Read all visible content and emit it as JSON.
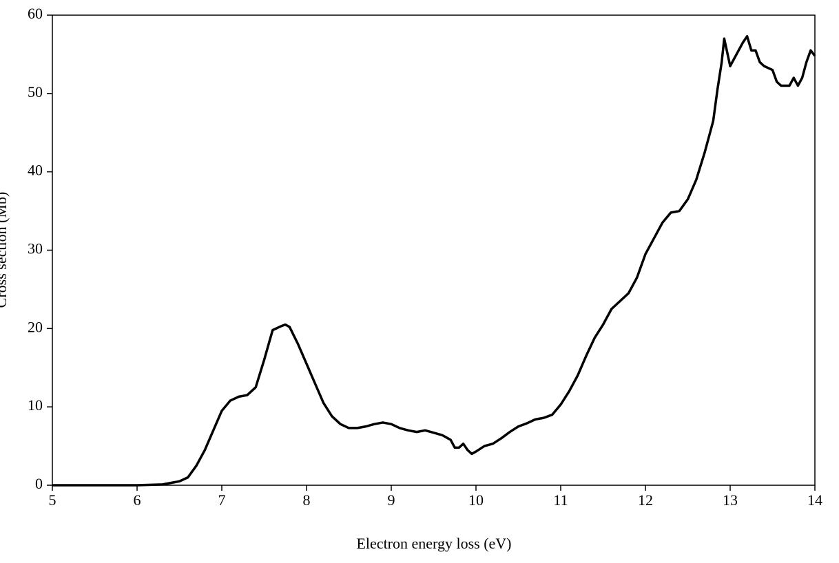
{
  "chart_data": {
    "type": "line",
    "x_label": "Electron energy loss (eV)",
    "y_label": "Cross section (Mb)",
    "xlim": [
      5,
      14
    ],
    "xticks": [
      5,
      6,
      7,
      8,
      9,
      10,
      11,
      12,
      13,
      14
    ],
    "ylim": [
      0,
      60
    ],
    "yticks": [
      0,
      10,
      20,
      30,
      40,
      50,
      60
    ],
    "grid": false,
    "series": [
      {
        "color": "#000000",
        "x": [
          5.0,
          6.0,
          6.3,
          6.5,
          6.6,
          6.7,
          6.8,
          6.9,
          7.0,
          7.1,
          7.2,
          7.3,
          7.4,
          7.5,
          7.6,
          7.7,
          7.75,
          7.8,
          7.9,
          8.0,
          8.1,
          8.2,
          8.3,
          8.4,
          8.5,
          8.6,
          8.7,
          8.8,
          8.9,
          9.0,
          9.1,
          9.2,
          9.3,
          9.4,
          9.5,
          9.6,
          9.7,
          9.75,
          9.8,
          9.85,
          9.9,
          9.95,
          10.0,
          10.1,
          10.2,
          10.3,
          10.4,
          10.5,
          10.6,
          10.7,
          10.8,
          10.9,
          11.0,
          11.1,
          11.2,
          11.3,
          11.4,
          11.5,
          11.6,
          11.7,
          11.8,
          11.9,
          12.0,
          12.1,
          12.2,
          12.3,
          12.4,
          12.5,
          12.6,
          12.7,
          12.8,
          12.85,
          12.9,
          12.93,
          12.97,
          13.0,
          13.05,
          13.1,
          13.15,
          13.2,
          13.25,
          13.3,
          13.35,
          13.4,
          13.5,
          13.55,
          13.6,
          13.7,
          13.75,
          13.8,
          13.85,
          13.9,
          13.95,
          14.0
        ],
        "values": [
          0,
          0,
          0.1,
          0.5,
          1,
          2.5,
          4.5,
          7,
          9.5,
          10.8,
          11.3,
          11.5,
          12.5,
          16,
          19.8,
          20.3,
          20.5,
          20.2,
          18,
          15.5,
          13,
          10.5,
          8.8,
          7.8,
          7.3,
          7.3,
          7.5,
          7.8,
          8,
          7.8,
          7.3,
          7,
          6.8,
          7,
          6.7,
          6.4,
          5.8,
          4.8,
          4.8,
          5.3,
          4.5,
          4,
          4.3,
          5,
          5.3,
          6,
          6.8,
          7.5,
          7.9,
          8.4,
          8.6,
          9,
          10.3,
          12,
          14,
          16.5,
          18.8,
          20.5,
          22.5,
          23.5,
          24.5,
          26.5,
          29.5,
          31.5,
          33.5,
          34.8,
          35,
          36.5,
          39,
          42.5,
          46.5,
          50.5,
          54,
          57,
          55,
          53.5,
          54.5,
          55.5,
          56.5,
          57.3,
          55.5,
          55.5,
          54,
          53.5,
          53,
          51.5,
          51,
          51,
          52,
          51,
          52,
          54,
          55.5,
          54.8
        ]
      }
    ]
  }
}
